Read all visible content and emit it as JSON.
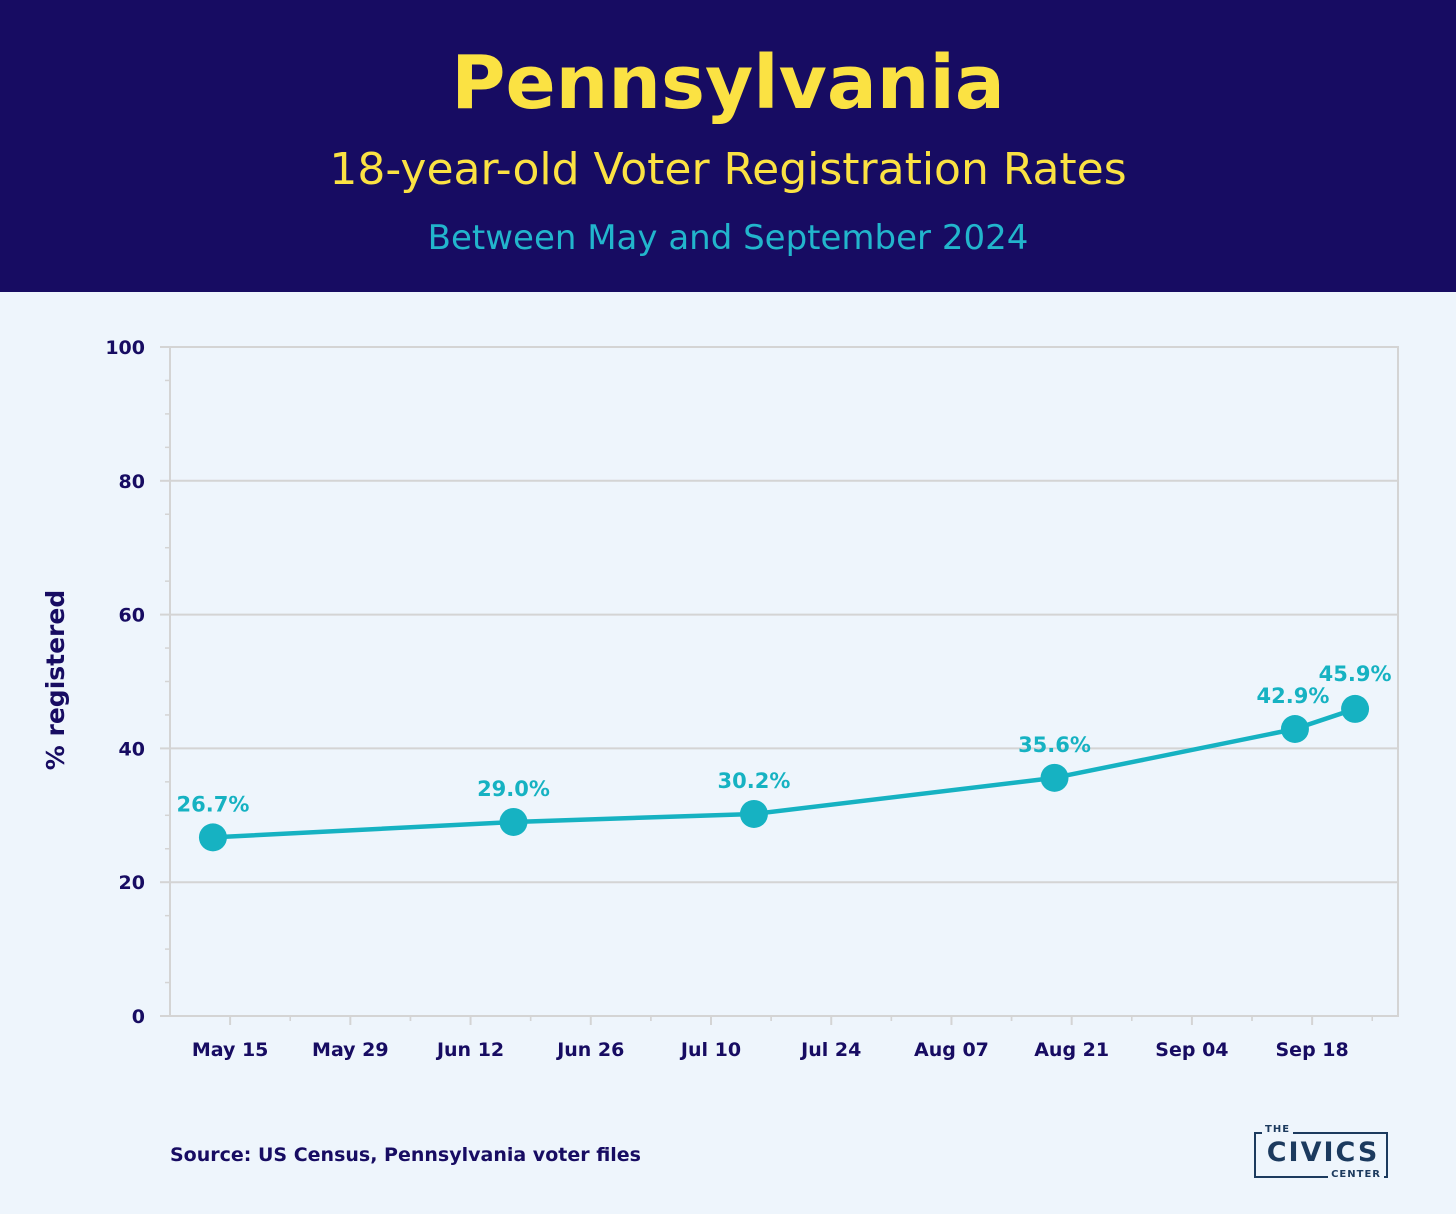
{
  "header": {
    "title": "Pennsylvania",
    "subtitle": "18-year-old Voter Registration Rates",
    "subtitle2": "Between May and September 2024"
  },
  "footer": {
    "source": "Source: US Census, Pennsylvania voter files"
  },
  "logo": {
    "the": "THE",
    "civics": "CIVICS",
    "center": "CENTER"
  },
  "colors": {
    "header_bg": "#170c62",
    "title": "#fbe243",
    "accent": "#16b2c2",
    "axis_text": "#170c62",
    "grid": "#d4d4d4",
    "background": "#eef5fc"
  },
  "chart_data": {
    "type": "line",
    "ylabel": "% registered",
    "xlabel": "",
    "ylim": [
      0,
      100
    ],
    "yticks": [
      0,
      20,
      40,
      60,
      80,
      100
    ],
    "xlim": [
      "2024-05-08",
      "2024-09-28"
    ],
    "xticks": [
      {
        "date": "2024-05-15",
        "label": "May 15"
      },
      {
        "date": "2024-05-29",
        "label": "May 29"
      },
      {
        "date": "2024-06-12",
        "label": "Jun 12"
      },
      {
        "date": "2024-06-26",
        "label": "Jun 26"
      },
      {
        "date": "2024-07-10",
        "label": "Jul 10"
      },
      {
        "date": "2024-07-24",
        "label": "Jul 24"
      },
      {
        "date": "2024-08-07",
        "label": "Aug 07"
      },
      {
        "date": "2024-08-21",
        "label": "Aug 21"
      },
      {
        "date": "2024-09-04",
        "label": "Sep 04"
      },
      {
        "date": "2024-09-18",
        "label": "Sep 18"
      }
    ],
    "grid": "horizontal",
    "series": [
      {
        "points": [
          {
            "x": "2024-05-13",
            "y": 26.7,
            "label": "26.7%"
          },
          {
            "x": "2024-06-17",
            "y": 29.0,
            "label": "29.0%"
          },
          {
            "x": "2024-07-15",
            "y": 30.2,
            "label": "30.2%"
          },
          {
            "x": "2024-08-19",
            "y": 35.6,
            "label": "35.6%"
          },
          {
            "x": "2024-09-16",
            "y": 42.9,
            "label": "42.9%"
          },
          {
            "x": "2024-09-23",
            "y": 45.9,
            "label": "45.9%"
          }
        ]
      }
    ]
  }
}
